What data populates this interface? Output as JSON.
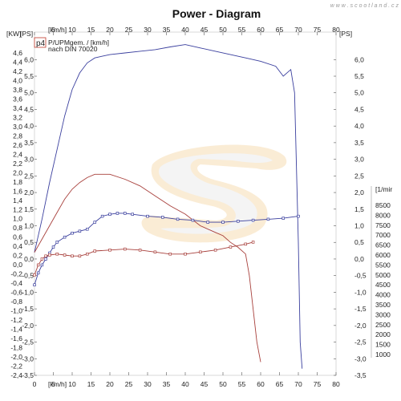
{
  "chart_data": {
    "type": "line",
    "title": "Power - Diagram",
    "watermark": "w w w . s c o o t l a n d . c z",
    "legend": {
      "tag": "p4",
      "line1": "P/UPMgem. / [km/h]",
      "line2": "nach DIN 70020"
    },
    "x_axis": {
      "label": "[km/h]",
      "range": [
        0,
        80
      ],
      "ticks": [
        0,
        5,
        10,
        15,
        20,
        25,
        30,
        35,
        40,
        45,
        50,
        55,
        60,
        65,
        70,
        75,
        80
      ],
      "top_unit": "[km/h]",
      "bottom_unit": "[km/h]"
    },
    "left_axis_kw": {
      "unit": "[KW]",
      "range": [
        -2.4,
        4.6
      ],
      "ticks": [
        "4,6",
        "4,4",
        "4,2",
        "4,0",
        "3,8",
        "3,6",
        "3,4",
        "3,2",
        "3,0",
        "2,8",
        "2,6",
        "2,4",
        "2,2",
        "2,0",
        "1,8",
        "1,6",
        "1,4",
        "1,2",
        "1,0",
        "0,8",
        "0,6",
        "0,4",
        "0,2",
        "0,0",
        "-0,2",
        "-0,4",
        "-0,6",
        "-0,8",
        "-1,0",
        "-1,2",
        "-1,4",
        "-1,6",
        "-1,8",
        "-2,0",
        "-2,2",
        "-2,4"
      ]
    },
    "left_axis_ps": {
      "unit": "[PS]",
      "range": [
        -3.5,
        6.2
      ],
      "ticks": [
        "6,0",
        "5,5",
        "5,0",
        "4,5",
        "4,0",
        "3,5",
        "3,0",
        "2,5",
        "2,0",
        "1,5",
        "1,0",
        "0,5",
        "0,0",
        "-0,5",
        "-1,0",
        "-1,5",
        "-2,0",
        "-2,5",
        "-3,0",
        "-3,5"
      ]
    },
    "right_axis_ps": {
      "unit": "[PS]",
      "range": [
        -3.5,
        6.2
      ],
      "ticks": [
        "6,0",
        "5,5",
        "5,0",
        "4,5",
        "4,0",
        "3,5",
        "3,0",
        "2,5",
        "2,0",
        "1,5",
        "1,0",
        "0,5",
        "0,0",
        "-0,5",
        "-1,0",
        "-1,5",
        "-2,0",
        "-2,5",
        "-3,0",
        "-3,5"
      ]
    },
    "right_axis_rpm": {
      "unit": "[1/mir",
      "range": [
        1000,
        8500
      ],
      "ticks": [
        "8500",
        "8000",
        "7500",
        "7000",
        "6500",
        "6000",
        "5500",
        "5000",
        "4500",
        "4000",
        "3500",
        "3000",
        "2500",
        "2000",
        "1500",
        "1000"
      ]
    },
    "series": [
      {
        "color": "#3a3f9e",
        "axis": "ps",
        "x": [
          0,
          2,
          4,
          6,
          8,
          10,
          12,
          14,
          16,
          18,
          20,
          24,
          28,
          32,
          36,
          40,
          44,
          48,
          52,
          56,
          60,
          64,
          66,
          68,
          69,
          70,
          70.5,
          71
        ],
        "y": [
          0.2,
          1.2,
          2.3,
          3.3,
          4.3,
          5.1,
          5.6,
          5.9,
          6.05,
          6.1,
          6.15,
          6.2,
          6.25,
          6.3,
          6.38,
          6.45,
          6.35,
          6.25,
          6.15,
          6.05,
          5.95,
          5.8,
          5.5,
          5.7,
          5.0,
          0.5,
          -2.5,
          -3.3
        ]
      },
      {
        "color": "#a8403c",
        "axis": "ps",
        "x": [
          0,
          2,
          4,
          6,
          8,
          10,
          12,
          14,
          16,
          20,
          24,
          28,
          32,
          36,
          40,
          44,
          48,
          50,
          52,
          54,
          56,
          57,
          58,
          59,
          60
        ],
        "y": [
          0.2,
          0.6,
          1.0,
          1.4,
          1.8,
          2.1,
          2.3,
          2.45,
          2.55,
          2.55,
          2.4,
          2.2,
          1.9,
          1.6,
          1.35,
          1.0,
          0.8,
          0.7,
          0.5,
          0.35,
          0.15,
          -0.5,
          -1.5,
          -2.5,
          -3.1
        ]
      },
      {
        "color": "#3a3f9e",
        "axis": "rpm",
        "markers": true,
        "x": [
          0,
          1,
          2,
          3,
          4,
          5,
          6,
          8,
          10,
          12,
          14,
          16,
          18,
          20,
          22,
          24,
          26,
          30,
          34,
          38,
          42,
          46,
          50,
          54,
          58,
          62,
          66,
          70
        ],
        "y": [
          4500,
          5100,
          5500,
          5800,
          6100,
          6400,
          6650,
          6900,
          7100,
          7200,
          7300,
          7650,
          7950,
          8050,
          8100,
          8100,
          8050,
          7950,
          7900,
          7800,
          7750,
          7650,
          7650,
          7700,
          7750,
          7800,
          7850,
          7950
        ]
      },
      {
        "color": "#a8403c",
        "axis": "rpm",
        "markers": true,
        "x": [
          0,
          1,
          2,
          3,
          4,
          6,
          8,
          10,
          12,
          14,
          16,
          20,
          24,
          28,
          32,
          36,
          40,
          44,
          48,
          52,
          56,
          58
        ],
        "y": [
          5000,
          5500,
          5800,
          5950,
          6000,
          6050,
          6000,
          5950,
          5950,
          6050,
          6200,
          6250,
          6300,
          6250,
          6150,
          6050,
          6050,
          6150,
          6250,
          6400,
          6550,
          6650
        ]
      }
    ],
    "grid": false
  }
}
